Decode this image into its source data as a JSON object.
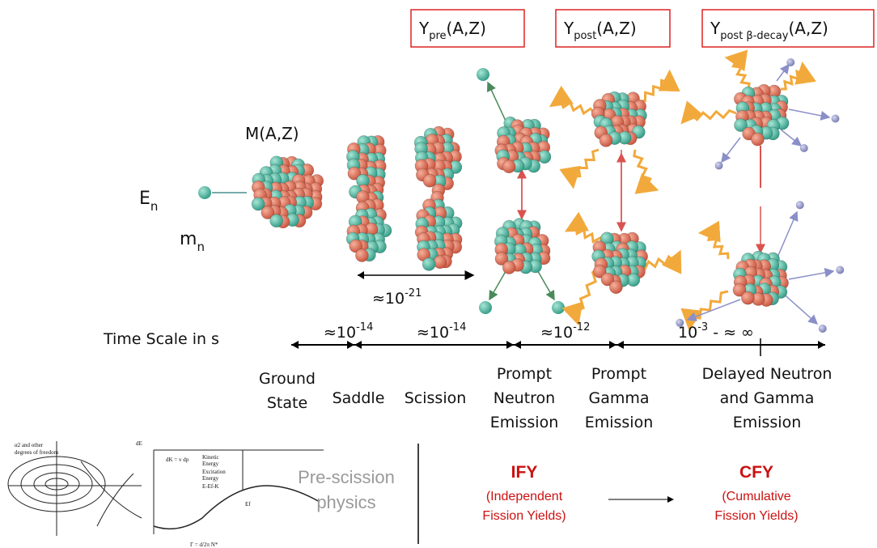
{
  "headers": [
    {
      "base": "Y",
      "sub": "pre",
      "suffix": "(A,Z)"
    },
    {
      "base": "Y",
      "sub": "post",
      "suffix": "(A,Z)"
    },
    {
      "base": "Y",
      "sub": "post β-decay",
      "suffix": "(A,Z)"
    }
  ],
  "labels": {
    "compound": "M(A,Z)",
    "energy": {
      "base": "E",
      "sub": "n"
    },
    "mass": {
      "base": "m",
      "sub": "n"
    },
    "saddle_time": {
      "base": "≈10",
      "exp": "-21"
    }
  },
  "time_scale": {
    "title": "Time Scale in s",
    "intervals": [
      {
        "base": "≈10",
        "exp": "-14"
      },
      {
        "base": "≈10",
        "exp": "-14"
      },
      {
        "base": "≈10",
        "exp": "-12"
      },
      {
        "base": "10",
        "exp": "-3",
        "suffix": " - ≈ ∞"
      }
    ]
  },
  "stages": [
    [
      "Ground",
      "State"
    ],
    [
      "Saddle"
    ],
    [
      "Scission"
    ],
    [
      "Prompt",
      "Neutron",
      "Emission"
    ],
    [
      "Prompt",
      "Gamma",
      "Emission"
    ],
    [
      "Delayed Neutron",
      "and Gamma",
      "Emission"
    ]
  ],
  "bottom": {
    "pre_scission": [
      "Pre-scission",
      "physics"
    ],
    "ify": {
      "abbr": "IFY",
      "lines": [
        "(Independent",
        "Fission Yields)"
      ]
    },
    "cfy": {
      "abbr": "CFY",
      "lines": [
        "(Cumulative",
        "Fission Yields)"
      ]
    }
  },
  "sketch": {
    "labels": [
      "α2 and other",
      "degrees of freedom",
      "dE",
      "dK = v dp",
      "Kinetic",
      "Energy",
      "Excitation",
      "Energy",
      "E-Ef-K",
      "Ef",
      "Γ = d/2π N*"
    ]
  }
}
